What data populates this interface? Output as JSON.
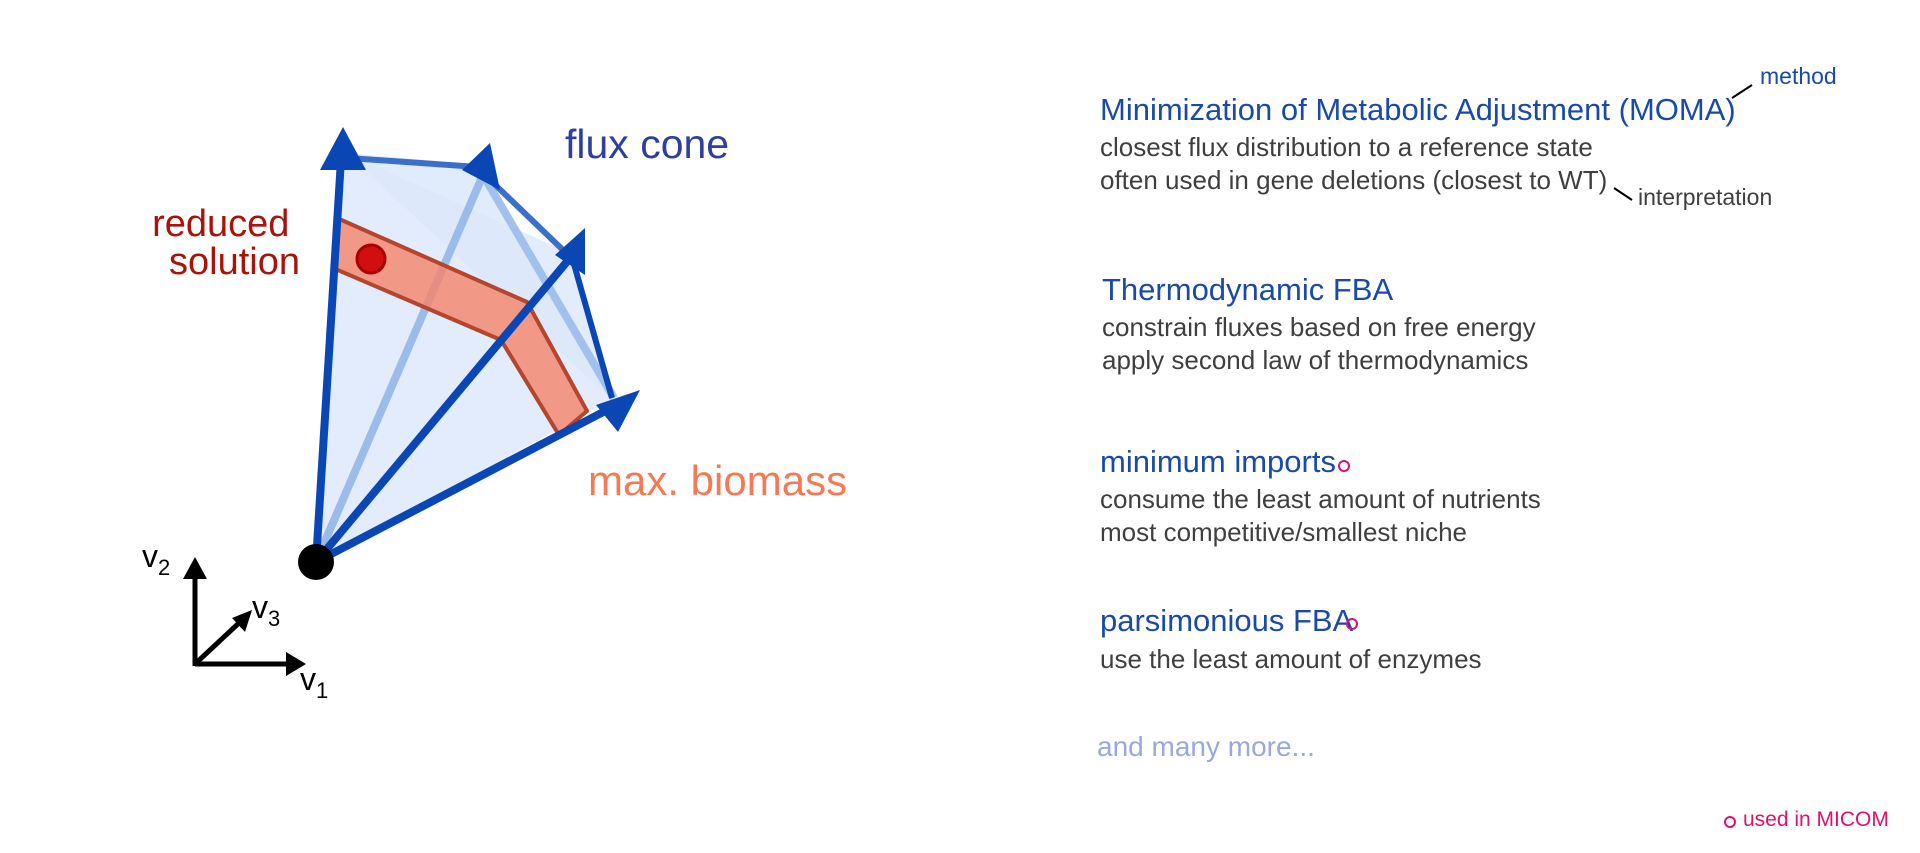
{
  "diagram": {
    "flux_cone_label": "flux cone",
    "reduced_solution_label": [
      "reduced",
      "solution"
    ],
    "max_biomass_label": "max. biomass",
    "axes": {
      "v1": "v",
      "v1_sub": "1",
      "v2": "v",
      "v2_sub": "2",
      "v3": "v",
      "v3_sub": "3"
    },
    "colors": {
      "cone_fill": "#dde9fb",
      "cone_edge": "#0a47b5",
      "cone_back_edge": "#9bbbea",
      "reduced_band": "#f4856b",
      "reduced_band_edge": "#b4452f",
      "reduced_point": "#d10f0f",
      "flux_cone_text": "#2e3f9e",
      "reduced_text": "#a8140c",
      "biomass_text": "#f47a55",
      "origin": "#000000"
    }
  },
  "methods": [
    {
      "title": "Minimization of Metabolic Adjustment (MOMA)",
      "lines": [
        "closest flux distribution to a reference state",
        "often used in gene deletions (closest to WT)"
      ],
      "used_in_micom": false
    },
    {
      "title": "Thermodynamic FBA",
      "lines": [
        "constrain fluxes based on free energy",
        "apply second law of thermodynamics"
      ],
      "used_in_micom": false
    },
    {
      "title": "minimum imports",
      "lines": [
        "consume the least amount of nutrients",
        "most competitive/smallest niche"
      ],
      "used_in_micom": true
    },
    {
      "title": "parsimonious FBA",
      "lines": [
        "use the least amount of enzymes"
      ],
      "used_in_micom": true
    }
  ],
  "annotations": {
    "method": "method",
    "interpretation": "interpretation"
  },
  "more": "and many more...",
  "legend": {
    "used_in_micom": "used in MICOM",
    "color": "#e0106f"
  }
}
